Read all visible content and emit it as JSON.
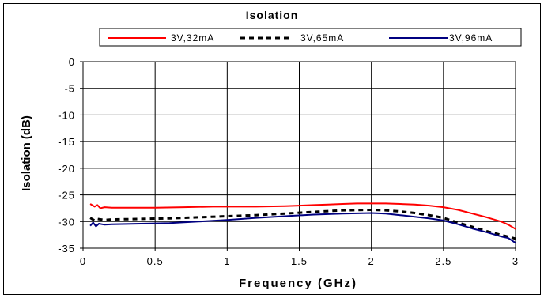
{
  "chart_data": {
    "type": "line",
    "title": "Isolation",
    "xlabel": "Frequency (GHz)",
    "ylabel": "Isolation (dB)",
    "xlim": [
      0,
      3
    ],
    "ylim": [
      -35,
      0
    ],
    "xticks": [
      0,
      0.5,
      1,
      1.5,
      2,
      2.5,
      3
    ],
    "xtick_labels": [
      "0",
      "0.5",
      "1",
      "1.5",
      "2",
      "2.5",
      "3"
    ],
    "yticks": [
      0,
      -5,
      -10,
      -15,
      -20,
      -25,
      -30,
      -35
    ],
    "ytick_labels": [
      "0",
      "-5",
      "-10",
      "-15",
      "-20",
      "-25",
      "-30",
      "-35"
    ],
    "grid": true,
    "legend_position": "top",
    "series": [
      {
        "name": "3V,32mA",
        "color": "#ff0000",
        "dash": "solid",
        "x": [
          0.05,
          0.08,
          0.1,
          0.12,
          0.15,
          0.2,
          0.3,
          0.5,
          0.7,
          0.9,
          1.0,
          1.2,
          1.4,
          1.5,
          1.6,
          1.7,
          1.8,
          1.9,
          2.0,
          2.1,
          2.2,
          2.3,
          2.4,
          2.5,
          2.6,
          2.7,
          2.8,
          2.9,
          2.95,
          3.0
        ],
        "y": [
          -26.7,
          -27.2,
          -26.9,
          -27.5,
          -27.3,
          -27.4,
          -27.4,
          -27.4,
          -27.3,
          -27.2,
          -27.2,
          -27.2,
          -27.1,
          -27.0,
          -26.9,
          -26.8,
          -26.7,
          -26.6,
          -26.6,
          -26.6,
          -26.7,
          -26.8,
          -27.0,
          -27.3,
          -27.8,
          -28.5,
          -29.2,
          -30.0,
          -30.6,
          -31.4
        ]
      },
      {
        "name": "3V,65mA",
        "color": "#000000",
        "dash": "dashed",
        "x": [
          0.05,
          0.08,
          0.1,
          0.15,
          0.2,
          0.4,
          0.6,
          0.8,
          1.0,
          1.2,
          1.4,
          1.6,
          1.8,
          2.0,
          2.1,
          2.2,
          2.3,
          2.4,
          2.5,
          2.6,
          2.7,
          2.8,
          2.9,
          3.0
        ],
        "y": [
          -29.3,
          -29.8,
          -29.5,
          -29.7,
          -29.6,
          -29.5,
          -29.4,
          -29.2,
          -29.0,
          -28.8,
          -28.5,
          -28.2,
          -27.9,
          -27.8,
          -27.9,
          -28.1,
          -28.4,
          -28.8,
          -29.3,
          -30.2,
          -31.0,
          -31.8,
          -32.5,
          -33.2
        ]
      },
      {
        "name": "3V,96mA",
        "color": "#000080",
        "dash": "solid",
        "x": [
          0.05,
          0.07,
          0.09,
          0.11,
          0.15,
          0.2,
          0.4,
          0.6,
          0.8,
          1.0,
          1.2,
          1.4,
          1.6,
          1.8,
          2.0,
          2.1,
          2.2,
          2.3,
          2.4,
          2.5,
          2.6,
          2.7,
          2.8,
          2.9,
          2.95,
          3.0
        ],
        "y": [
          -30.8,
          -30.2,
          -30.9,
          -30.4,
          -30.6,
          -30.5,
          -30.4,
          -30.3,
          -30.0,
          -29.7,
          -29.3,
          -29.0,
          -28.7,
          -28.5,
          -28.4,
          -28.5,
          -28.8,
          -29.1,
          -29.4,
          -29.8,
          -30.5,
          -31.3,
          -32.0,
          -32.8,
          -33.1,
          -34.0
        ]
      }
    ]
  }
}
